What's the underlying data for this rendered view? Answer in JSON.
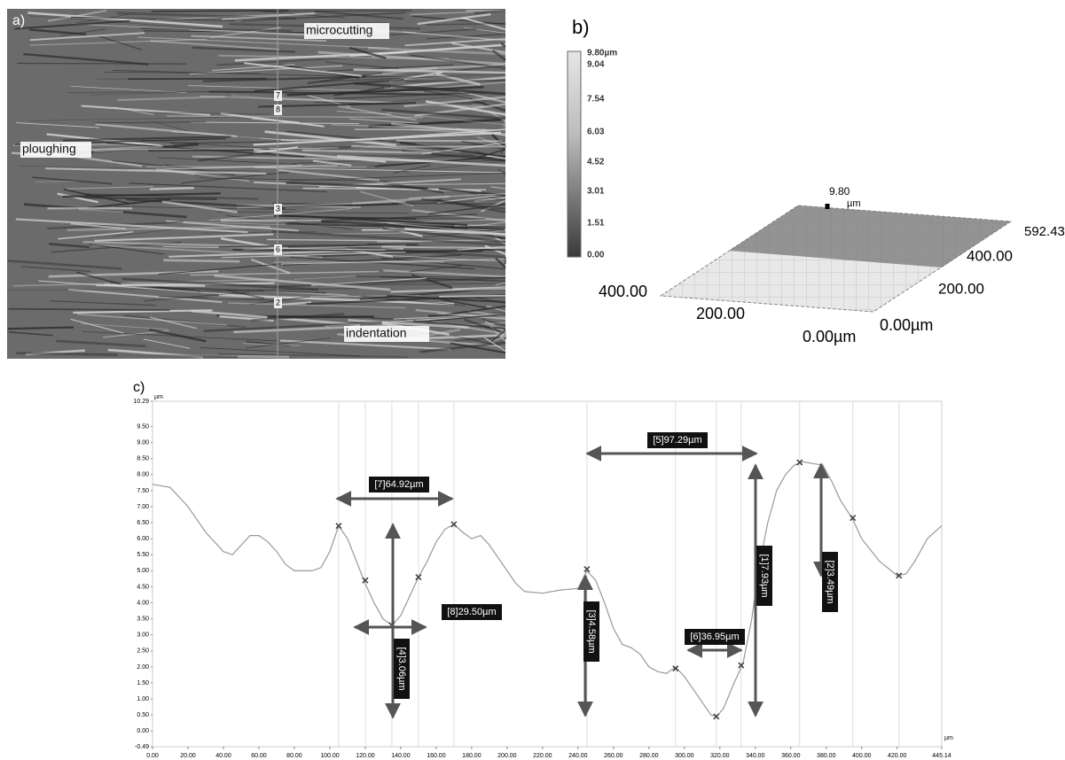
{
  "panel_a": {
    "label": "a)",
    "annotations": [
      "microcutting",
      "ploughing",
      "indentation"
    ],
    "line_markers": [
      "7",
      "8",
      "3",
      "6",
      "2"
    ]
  },
  "panel_b": {
    "label": "b)",
    "colorbar_labels": [
      "9.80µm",
      "9.04",
      "7.54",
      "6.03",
      "4.52",
      "3.01",
      "1.51",
      "0.00"
    ],
    "axis_labels": [
      "400.00",
      "200.00",
      "0.00µm",
      "0.00µm",
      "200.00",
      "400.00",
      "592.43",
      "9.80",
      "µm"
    ]
  },
  "chart_data": {
    "type": "line",
    "panel_label": "c)",
    "y_unit": "µm",
    "x_unit": "µm",
    "color": "#999999",
    "xlim": [
      0,
      445.14
    ],
    "ylim": [
      -0.49,
      10.29
    ],
    "yticks": [
      10.29,
      {
        "value": 9.5,
        "label": "9.50"
      },
      {
        "value": 9,
        "label": "9.00"
      },
      {
        "value": 8.5,
        "label": "8.50"
      },
      {
        "value": 8,
        "label": "8.00"
      },
      {
        "value": 7.5,
        "label": "7.50"
      },
      {
        "value": 7,
        "label": "7.00"
      },
      {
        "value": 6.5,
        "label": "6.50"
      },
      {
        "value": 6,
        "label": "6.00"
      },
      {
        "value": 5.5,
        "label": "5.50"
      },
      {
        "value": 5,
        "label": "5.00"
      },
      {
        "value": 4.5,
        "label": "4.50"
      },
      {
        "value": 4,
        "label": "4.00"
      },
      {
        "value": 3.5,
        "label": "3.50"
      },
      {
        "value": 3,
        "label": "3.00"
      },
      {
        "value": 2.5,
        "label": "2.50"
      },
      {
        "value": 2,
        "label": "2.00"
      },
      {
        "value": 1.5,
        "label": "1.50"
      },
      {
        "value": 1,
        "label": "1.00"
      },
      {
        "value": 0.5,
        "label": "0.50"
      },
      {
        "value": 0,
        "label": "0.00"
      },
      -0.49
    ],
    "xticks": [
      {
        "value": 0,
        "label": "0.00"
      },
      {
        "value": 20,
        "label": "20.00"
      },
      {
        "value": 40,
        "label": "40.00"
      },
      {
        "value": 60,
        "label": "60.00"
      },
      {
        "value": 80,
        "label": "80.00"
      },
      {
        "value": 100,
        "label": "100.00"
      },
      {
        "value": 120,
        "label": "120.00"
      },
      {
        "value": 140,
        "label": "140.00"
      },
      {
        "value": 160,
        "label": "160.00"
      },
      {
        "value": 180,
        "label": "180.00"
      },
      {
        "value": 200,
        "label": "200.00"
      },
      {
        "value": 220,
        "label": "220.00"
      },
      {
        "value": 240,
        "label": "240.00"
      },
      {
        "value": 260,
        "label": "260.00"
      },
      {
        "value": 280,
        "label": "280.00"
      },
      {
        "value": 300,
        "label": "300.00"
      },
      {
        "value": 320,
        "label": "320.00"
      },
      {
        "value": 340,
        "label": "340.00"
      },
      {
        "value": 360,
        "label": "360.00"
      },
      {
        "value": 380,
        "label": "380.00"
      },
      {
        "value": 400,
        "label": "400.00"
      },
      {
        "value": 420,
        "label": "420.00"
      },
      445.14
    ],
    "x": [
      0,
      10,
      20,
      30,
      40,
      45,
      50,
      55,
      60,
      65,
      70,
      75,
      80,
      90,
      95,
      100,
      105,
      110,
      115,
      120,
      125,
      130,
      135,
      140,
      145,
      150,
      155,
      160,
      165,
      170,
      175,
      180,
      185,
      190,
      195,
      200,
      205,
      210,
      220,
      230,
      240,
      245,
      250,
      255,
      260,
      265,
      270,
      275,
      280,
      285,
      290,
      295,
      300,
      305,
      310,
      315,
      318,
      322,
      328,
      333,
      338,
      342,
      347,
      352,
      357,
      362,
      367,
      372,
      378,
      383,
      388,
      395,
      400,
      410,
      420,
      425,
      430,
      437,
      445
    ],
    "values": [
      7.7,
      7.6,
      7.0,
      6.2,
      5.6,
      5.5,
      5.8,
      6.1,
      6.1,
      5.9,
      5.6,
      5.2,
      5.0,
      5.0,
      5.1,
      5.6,
      6.4,
      6.0,
      5.3,
      4.6,
      4.0,
      3.5,
      3.3,
      3.6,
      4.2,
      4.8,
      5.3,
      5.9,
      6.3,
      6.45,
      6.2,
      6.0,
      6.1,
      5.8,
      5.4,
      5.0,
      4.6,
      4.35,
      4.3,
      4.4,
      4.45,
      5.0,
      4.7,
      4.0,
      3.2,
      2.7,
      2.6,
      2.4,
      2.0,
      1.85,
      1.8,
      2.0,
      1.7,
      1.3,
      0.9,
      0.5,
      0.45,
      0.7,
      1.5,
      2.1,
      3.5,
      5.1,
      6.5,
      7.5,
      8.0,
      8.3,
      8.4,
      8.35,
      8.3,
      7.8,
      7.2,
      6.6,
      6.0,
      5.3,
      4.85,
      4.9,
      5.3,
      6.0,
      6.4
    ],
    "markers": {
      "x": [
        105,
        120,
        135,
        150,
        170,
        245,
        295,
        318,
        332,
        365,
        395,
        421
      ],
      "y": [
        6.4,
        4.7,
        3.3,
        4.8,
        6.45,
        5.05,
        1.95,
        0.45,
        2.05,
        8.38,
        6.65,
        4.85
      ]
    },
    "measurements": [
      "[7]64.92µm",
      "[4]3.06µm",
      "[8]29.50µm",
      "[3]4.58µm",
      "[5]97.29µm",
      "[6]36.95µm",
      "[1]7.93µm",
      "[2]3.49µm"
    ]
  }
}
